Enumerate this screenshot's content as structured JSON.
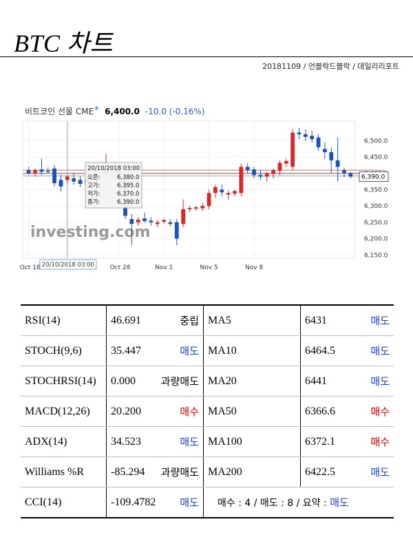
{
  "header": {
    "title": "BTC 차트",
    "byline": "20181109 / 언블락드블락 / 데일리리포트"
  },
  "chart_header": {
    "instrument": "비트코인 선물 CME",
    "price": "6,400.0",
    "change": "-10.0 (-0.16%)"
  },
  "chart_data": {
    "type": "candlestick",
    "x_ticks": [
      {
        "label": "Oct 18",
        "index": 0
      },
      {
        "label": "Oct 28",
        "index": 14
      },
      {
        "label": "Nov 1",
        "index": 21
      },
      {
        "label": "Nov 5",
        "index": 28
      },
      {
        "label": "Nov 8",
        "index": 35
      }
    ],
    "y_ticks": [
      "6,500.0",
      "6,450.0",
      "6,400.0",
      "6,350.0",
      "6,300.0",
      "6,250.0",
      "6,200.0",
      "6,150.0"
    ],
    "ylim": [
      6140,
      6560
    ],
    "current_price_label": "6,390.0",
    "reference_lines": [
      6410,
      6400,
      6392
    ],
    "crosshair": {
      "index": 6,
      "x_label": "20/10/2018 03:00"
    },
    "tooltip": {
      "date": "20/10/2018 03:00",
      "rows": [
        {
          "label": "오픈:",
          "value": "6,380.0"
        },
        {
          "label": "고가:",
          "value": "6,395.0"
        },
        {
          "label": "저가:",
          "value": "6,370.0"
        },
        {
          "label": "종가:",
          "value": "6,390.0"
        }
      ]
    },
    "watermark": "investing.com",
    "candles": [
      {
        "o": 6410,
        "h": 6420,
        "l": 6395,
        "c": 6400
      },
      {
        "o": 6400,
        "h": 6415,
        "l": 6390,
        "c": 6410
      },
      {
        "o": 6412,
        "h": 6445,
        "l": 6395,
        "c": 6405
      },
      {
        "o": 6408,
        "h": 6418,
        "l": 6400,
        "c": 6405
      },
      {
        "o": 6415,
        "h": 6425,
        "l": 6360,
        "c": 6370
      },
      {
        "o": 6380,
        "h": 6395,
        "l": 6345,
        "c": 6360
      },
      {
        "o": 6380,
        "h": 6395,
        "l": 6370,
        "c": 6390
      },
      {
        "o": 6385,
        "h": 6400,
        "l": 6365,
        "c": 6375
      },
      {
        "o": 6380,
        "h": 6390,
        "l": 6358,
        "c": 6368
      },
      {
        "o": 6372,
        "h": 6392,
        "l": 6358,
        "c": 6380
      },
      {
        "o": 6378,
        "h": 6395,
        "l": 6368,
        "c": 6388
      },
      {
        "o": 6392,
        "h": 6405,
        "l": 6380,
        "c": 6390
      },
      {
        "o": 6395,
        "h": 6460,
        "l": 6382,
        "c": 6405
      },
      {
        "o": 6392,
        "h": 6410,
        "l": 6378,
        "c": 6395
      },
      {
        "o": 6410,
        "h": 6418,
        "l": 6380,
        "c": 6395
      },
      {
        "o": 6390,
        "h": 6400,
        "l": 6260,
        "c": 6270
      },
      {
        "o": 6260,
        "h": 6275,
        "l": 6180,
        "c": 6245
      },
      {
        "o": 6250,
        "h": 6265,
        "l": 6240,
        "c": 6258
      },
      {
        "o": 6262,
        "h": 6280,
        "l": 6248,
        "c": 6254
      },
      {
        "o": 6255,
        "h": 6265,
        "l": 6240,
        "c": 6250
      },
      {
        "o": 6245,
        "h": 6258,
        "l": 6235,
        "c": 6250
      },
      {
        "o": 6252,
        "h": 6262,
        "l": 6245,
        "c": 6257
      },
      {
        "o": 6250,
        "h": 6258,
        "l": 6238,
        "c": 6245
      },
      {
        "o": 6250,
        "h": 6260,
        "l": 6180,
        "c": 6200
      },
      {
        "o": 6245,
        "h": 6320,
        "l": 6235,
        "c": 6290
      },
      {
        "o": 6290,
        "h": 6300,
        "l": 6282,
        "c": 6294
      },
      {
        "o": 6292,
        "h": 6300,
        "l": 6285,
        "c": 6296
      },
      {
        "o": 6293,
        "h": 6310,
        "l": 6285,
        "c": 6300
      },
      {
        "o": 6300,
        "h": 6350,
        "l": 6290,
        "c": 6340
      },
      {
        "o": 6340,
        "h": 6365,
        "l": 6325,
        "c": 6358
      },
      {
        "o": 6350,
        "h": 6365,
        "l": 6330,
        "c": 6342
      },
      {
        "o": 6335,
        "h": 6348,
        "l": 6320,
        "c": 6340
      },
      {
        "o": 6338,
        "h": 6350,
        "l": 6330,
        "c": 6346
      },
      {
        "o": 6340,
        "h": 6430,
        "l": 6330,
        "c": 6420
      },
      {
        "o": 6420,
        "h": 6430,
        "l": 6400,
        "c": 6410
      },
      {
        "o": 6412,
        "h": 6420,
        "l": 6385,
        "c": 6395
      },
      {
        "o": 6395,
        "h": 6410,
        "l": 6380,
        "c": 6390
      },
      {
        "o": 6390,
        "h": 6405,
        "l": 6375,
        "c": 6400
      },
      {
        "o": 6398,
        "h": 6415,
        "l": 6385,
        "c": 6410
      },
      {
        "o": 6408,
        "h": 6440,
        "l": 6395,
        "c": 6432
      },
      {
        "o": 6430,
        "h": 6445,
        "l": 6420,
        "c": 6438
      },
      {
        "o": 6420,
        "h": 6535,
        "l": 6410,
        "c": 6525
      },
      {
        "o": 6525,
        "h": 6540,
        "l": 6505,
        "c": 6520
      },
      {
        "o": 6520,
        "h": 6535,
        "l": 6500,
        "c": 6512
      },
      {
        "o": 6515,
        "h": 6530,
        "l": 6495,
        "c": 6505
      },
      {
        "o": 6510,
        "h": 6520,
        "l": 6470,
        "c": 6480
      },
      {
        "o": 6475,
        "h": 6495,
        "l": 6445,
        "c": 6465
      },
      {
        "o": 6465,
        "h": 6480,
        "l": 6400,
        "c": 6440
      },
      {
        "o": 6440,
        "h": 6510,
        "l": 6375,
        "c": 6420
      },
      {
        "o": 6410,
        "h": 6418,
        "l": 6388,
        "c": 6400
      },
      {
        "o": 6400,
        "h": 6405,
        "l": 6385,
        "c": 6390
      }
    ]
  },
  "indicators": [
    {
      "name": "RSI(14)",
      "value": "46.691",
      "signal": "중립",
      "signal_type": "neutral",
      "ma_name": "MA5",
      "ma_value": "6431",
      "ma_signal": "매도",
      "ma_signal_type": "sell"
    },
    {
      "name": "STOCH(9,6)",
      "value": "35.447",
      "signal": "매도",
      "signal_type": "sell",
      "ma_name": "MA10",
      "ma_value": "6464.5",
      "ma_signal": "매도",
      "ma_signal_type": "sell"
    },
    {
      "name": "STOCHRSI(14)",
      "value": "0.000",
      "signal": "과량매도",
      "signal_type": "neutral",
      "ma_name": "MA20",
      "ma_value": "6441",
      "ma_signal": "매도",
      "ma_signal_type": "sell"
    },
    {
      "name": "MACD(12,26)",
      "value": "20.200",
      "signal": "매수",
      "signal_type": "buy",
      "ma_name": "MA50",
      "ma_value": "6366.6",
      "ma_signal": "매수",
      "ma_signal_type": "buy"
    },
    {
      "name": "ADX(14)",
      "value": "34.523",
      "signal": "매도",
      "signal_type": "sell",
      "ma_name": "MA100",
      "ma_value": "6372.1",
      "ma_signal": "매수",
      "ma_signal_type": "buy"
    },
    {
      "name": "Williams %R",
      "value": "-85.294",
      "signal": "과량매도",
      "signal_type": "neutral",
      "ma_name": "MA200",
      "ma_value": "6422.5",
      "ma_signal": "매도",
      "ma_signal_type": "sell"
    }
  ],
  "last_row": {
    "name": "CCI(14)",
    "value": "-109.4782",
    "signal": "매도",
    "signal_type": "sell",
    "summary_prefix": "매수 : 4 / 매도 : 8 / 요약 : ",
    "summary_result": "매도"
  }
}
